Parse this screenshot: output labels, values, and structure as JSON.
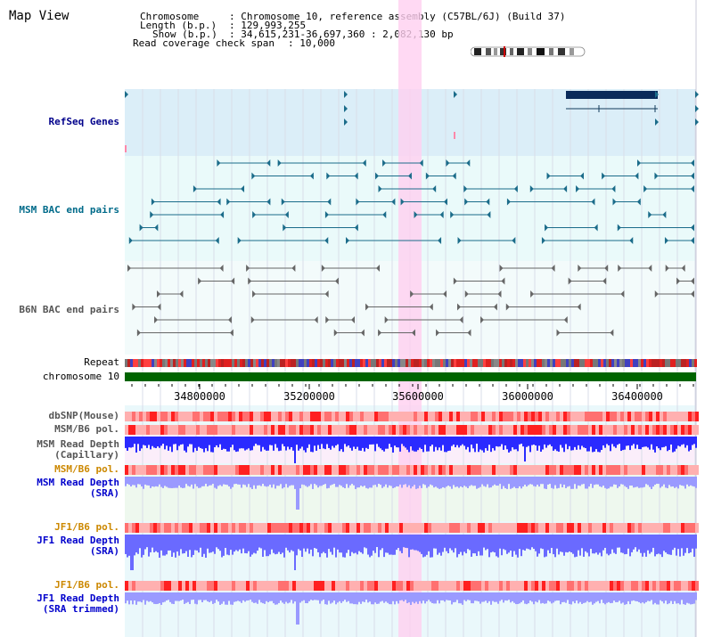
{
  "view": {
    "title": "Map View",
    "info": {
      "chromosome_label": "Chromosome",
      "chromosome_value": ": Chromosome 10, reference assembly (C57BL/6J) (Build 37)",
      "length_label": "Length (b.p.)",
      "length_value": ": 129,993,255",
      "show_label": "Show (b.p.)",
      "show_value": ": 34,615,231-36,697,360 : 2,082,130 bp",
      "coverage_label": "Read coverage check span",
      "coverage_value": ": 10,000"
    }
  },
  "tracks": {
    "refseq": "RefSeq Genes",
    "msm_bac": "MSM BAC end pairs",
    "b6n_bac": "B6N BAC end pairs",
    "repeat": "Repeat",
    "chromosome": "chromosome 10",
    "dbsnp": "dbSNP(Mouse)",
    "msm_b6_pol": "MSM/B6 pol.",
    "msm_depth_cap_1": "MSM Read Depth",
    "msm_depth_cap_2": "(Capillary)",
    "msm_b6_pol_2": "MSM/B6 pol.",
    "msm_depth_sra_1": "MSM Read Depth",
    "msm_depth_sra_2": "(SRA)",
    "jf1_b6_pol": "JF1/B6 pol.",
    "jf1_depth_sra_1": "JF1 Read Depth",
    "jf1_depth_sra_2": "(SRA)",
    "jf1_b6_pol_2": "JF1/B6 pol.",
    "jf1_depth_trim_1": "JF1 Read Depth",
    "jf1_depth_trim_2": "(SRA trimmed)"
  },
  "axis": {
    "ticks": [
      "34800000",
      "35200000",
      "35600000",
      "36000000",
      "36400000"
    ]
  },
  "colors": {
    "navy": "#00008b",
    "teal": "#006b8a",
    "gray": "#555555",
    "orange": "#cc8800",
    "blue": "#0000cc",
    "highlight": "#ffd0f0",
    "chromosome_green": "#006400"
  }
}
